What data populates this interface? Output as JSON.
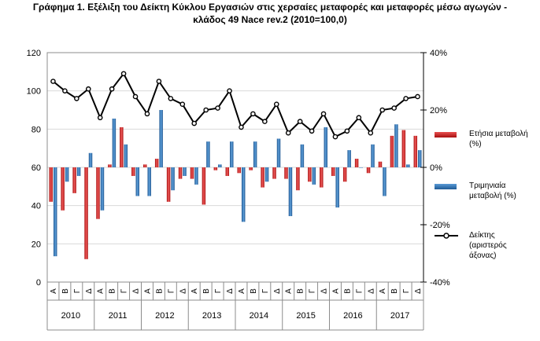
{
  "chart_data": {
    "type": "bar+line",
    "title": "Γράφημα 1.  Εξέλιξη του Δείκτη Κύκλου Εργασιών στις χερσαίες μεταφορές και μεταφορές μέσω αγωγών -",
    "subtitle": "κλάδος 49 Nace rev.2  (2010=100,0)",
    "quarter_labels": [
      "Α",
      "Β",
      "Γ",
      "Δ"
    ],
    "years": [
      "2010",
      "2011",
      "2012",
      "2013",
      "2014",
      "2015",
      "2016",
      "2017"
    ],
    "left_axis": {
      "ylim": [
        0,
        120
      ],
      "ticks": [
        0,
        20,
        40,
        60,
        80,
        100,
        120
      ]
    },
    "right_axis": {
      "ylim": [
        -40,
        40
      ],
      "ticks": [
        "-40%",
        "-20%",
        "0%",
        "20%",
        "40%"
      ]
    },
    "series": [
      {
        "name": "Ετήσια μεταβολή (%)",
        "type": "bar",
        "axis": "right",
        "color": "#cc1f1f",
        "values": [
          -12,
          -15,
          -9,
          -32,
          -18,
          1,
          14,
          -3,
          1,
          3,
          -12,
          -4,
          -4,
          -13,
          -1,
          -3,
          -2,
          -1,
          -7,
          -4,
          -4,
          -8,
          -5,
          -7,
          -3,
          -5,
          3,
          -2,
          2,
          11,
          13,
          11
        ]
      },
      {
        "name": "Τριμηνιαία μεταβολή (%)",
        "type": "bar",
        "axis": "right",
        "color": "#2e6fad",
        "values": [
          -31,
          -5,
          -3,
          5,
          -15,
          17,
          8,
          -10,
          -10,
          20,
          -8,
          -3,
          -6,
          9,
          1,
          9,
          -19,
          9,
          -5,
          10,
          -17,
          8,
          -6,
          14,
          -14,
          6,
          0,
          8,
          -10,
          15,
          1,
          6
        ]
      },
      {
        "name": "Δείκτης (αριστερός άξονας)",
        "type": "line",
        "axis": "left",
        "color": "#000000",
        "values": [
          105,
          100,
          96,
          101,
          86,
          101,
          109,
          97,
          88,
          105,
          96,
          93,
          83,
          90,
          91,
          100,
          81,
          88,
          84,
          93,
          78,
          84,
          79,
          88,
          76,
          79,
          86,
          78,
          90,
          91,
          96,
          97
        ]
      }
    ],
    "legend_placement": "right"
  }
}
